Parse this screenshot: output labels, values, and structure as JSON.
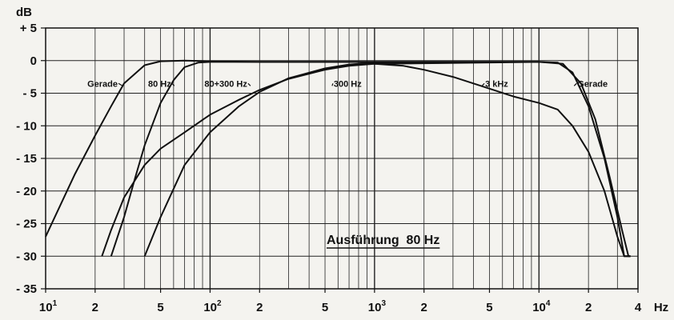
{
  "chart_data": {
    "type": "line",
    "title": "",
    "xlabel": "Hz",
    "ylabel": "dB",
    "x_scale": "log",
    "xlim": [
      10,
      40000
    ],
    "ylim": [
      -35,
      5
    ],
    "grid": true,
    "y_ticks": [
      {
        "value": 5,
        "label": "+ 5"
      },
      {
        "value": 0,
        "label": "0"
      },
      {
        "value": -5,
        "label": "- 5"
      },
      {
        "value": -10,
        "label": "- 10"
      },
      {
        "value": -15,
        "label": "- 15"
      },
      {
        "value": -20,
        "label": "- 20"
      },
      {
        "value": -25,
        "label": "- 25"
      },
      {
        "value": -30,
        "label": "- 30"
      },
      {
        "value": -35,
        "label": "- 35"
      }
    ],
    "x_ticks": [
      {
        "value": 10,
        "base": "10",
        "exp": "1"
      },
      {
        "value": 20,
        "base": "2",
        "exp": ""
      },
      {
        "value": 50,
        "base": "5",
        "exp": ""
      },
      {
        "value": 100,
        "base": "10",
        "exp": "2"
      },
      {
        "value": 200,
        "base": "2",
        "exp": ""
      },
      {
        "value": 500,
        "base": "5",
        "exp": ""
      },
      {
        "value": 1000,
        "base": "10",
        "exp": "3"
      },
      {
        "value": 2000,
        "base": "2",
        "exp": ""
      },
      {
        "value": 5000,
        "base": "5",
        "exp": ""
      },
      {
        "value": 10000,
        "base": "10",
        "exp": "4"
      },
      {
        "value": 20000,
        "base": "2",
        "exp": ""
      },
      {
        "value": 40000,
        "base": "4",
        "exp": ""
      }
    ],
    "annotation": {
      "text": "Ausführung  80 Hz",
      "x": 200,
      "y": -27
    },
    "series": [
      {
        "name": "Gerade",
        "points": [
          [
            10,
            -27
          ],
          [
            15,
            -17.5
          ],
          [
            20,
            -11.5
          ],
          [
            25,
            -7
          ],
          [
            30,
            -3.5
          ],
          [
            40,
            -0.7
          ],
          [
            50,
            -0.1
          ],
          [
            70,
            0
          ],
          [
            100,
            -0.1
          ],
          [
            200,
            -0.2
          ],
          [
            1000,
            -0.2
          ],
          [
            5000,
            -0.2
          ],
          [
            10000,
            -0.2
          ],
          [
            13000,
            -0.3
          ],
          [
            16000,
            -1.8
          ],
          [
            20000,
            -7
          ],
          [
            25000,
            -15
          ],
          [
            30000,
            -24
          ],
          [
            33000,
            -30
          ],
          [
            36000,
            -30
          ]
        ]
      },
      {
        "name": "80 Hz",
        "points": [
          [
            25,
            -30
          ],
          [
            30,
            -24
          ],
          [
            35,
            -18
          ],
          [
            40,
            -13
          ],
          [
            50,
            -6.5
          ],
          [
            60,
            -3
          ],
          [
            70,
            -1
          ],
          [
            85,
            -0.3
          ],
          [
            100,
            -0.2
          ],
          [
            200,
            -0.2
          ],
          [
            1000,
            -0.2
          ],
          [
            10000,
            -0.2
          ],
          [
            14000,
            -0.5
          ],
          [
            18000,
            -3.5
          ],
          [
            22000,
            -9
          ],
          [
            27000,
            -18
          ],
          [
            32000,
            -26
          ],
          [
            35000,
            -30
          ],
          [
            36000,
            -30
          ]
        ]
      },
      {
        "name": "80+300 Hz",
        "points": [
          [
            22,
            -30
          ],
          [
            25,
            -26
          ],
          [
            30,
            -21
          ],
          [
            40,
            -16
          ],
          [
            50,
            -13.5
          ],
          [
            70,
            -11
          ],
          [
            100,
            -8.3
          ],
          [
            150,
            -6
          ],
          [
            200,
            -4.5
          ],
          [
            300,
            -2.8
          ],
          [
            500,
            -1.4
          ],
          [
            700,
            -0.8
          ],
          [
            1000,
            -0.5
          ],
          [
            1500,
            -0.8
          ],
          [
            2000,
            -1.4
          ],
          [
            3000,
            -2.5
          ],
          [
            5000,
            -4.3
          ],
          [
            7000,
            -5.5
          ],
          [
            10000,
            -6.5
          ],
          [
            13000,
            -7.5
          ],
          [
            16000,
            -10
          ],
          [
            20000,
            -14
          ],
          [
            25000,
            -20
          ],
          [
            30000,
            -27
          ],
          [
            33000,
            -30
          ],
          [
            36000,
            -30
          ]
        ]
      },
      {
        "name": "300 Hz",
        "points": [
          [
            40,
            -30
          ],
          [
            50,
            -24
          ],
          [
            70,
            -16
          ],
          [
            100,
            -11
          ],
          [
            150,
            -7
          ],
          [
            200,
            -4.8
          ],
          [
            300,
            -2.7
          ],
          [
            500,
            -1.2
          ],
          [
            700,
            -0.6
          ],
          [
            1000,
            -0.3
          ],
          [
            2000,
            -0.2
          ],
          [
            10000,
            -0.2
          ]
        ]
      },
      {
        "name": "3 kHz",
        "points": [
          [
            1000,
            -0.5
          ],
          [
            10000,
            -0.2
          ]
        ]
      }
    ],
    "curve_labels": [
      {
        "text": "Gerade",
        "x": 30,
        "y": -3.5,
        "anchor": "end",
        "dx": -8,
        "dy": 0
      },
      {
        "text": "80 Hz",
        "x": 62,
        "y": -3.5,
        "anchor": "end",
        "dx": -6,
        "dy": 0
      },
      {
        "text": "80+300 Hz",
        "x": 180,
        "y": -3.5,
        "anchor": "end",
        "dx": -6,
        "dy": 0
      },
      {
        "text": "300 Hz",
        "x": 540,
        "y": -3.5,
        "anchor": "start",
        "dx": 4,
        "dy": 0
      },
      {
        "text": "3 kHz",
        "x": 4400,
        "y": -3.5,
        "anchor": "start",
        "dx": 6,
        "dy": 0
      },
      {
        "text": "Gerade",
        "x": 16000,
        "y": -3.5,
        "anchor": "start",
        "dx": 6,
        "dy": 0
      }
    ]
  }
}
